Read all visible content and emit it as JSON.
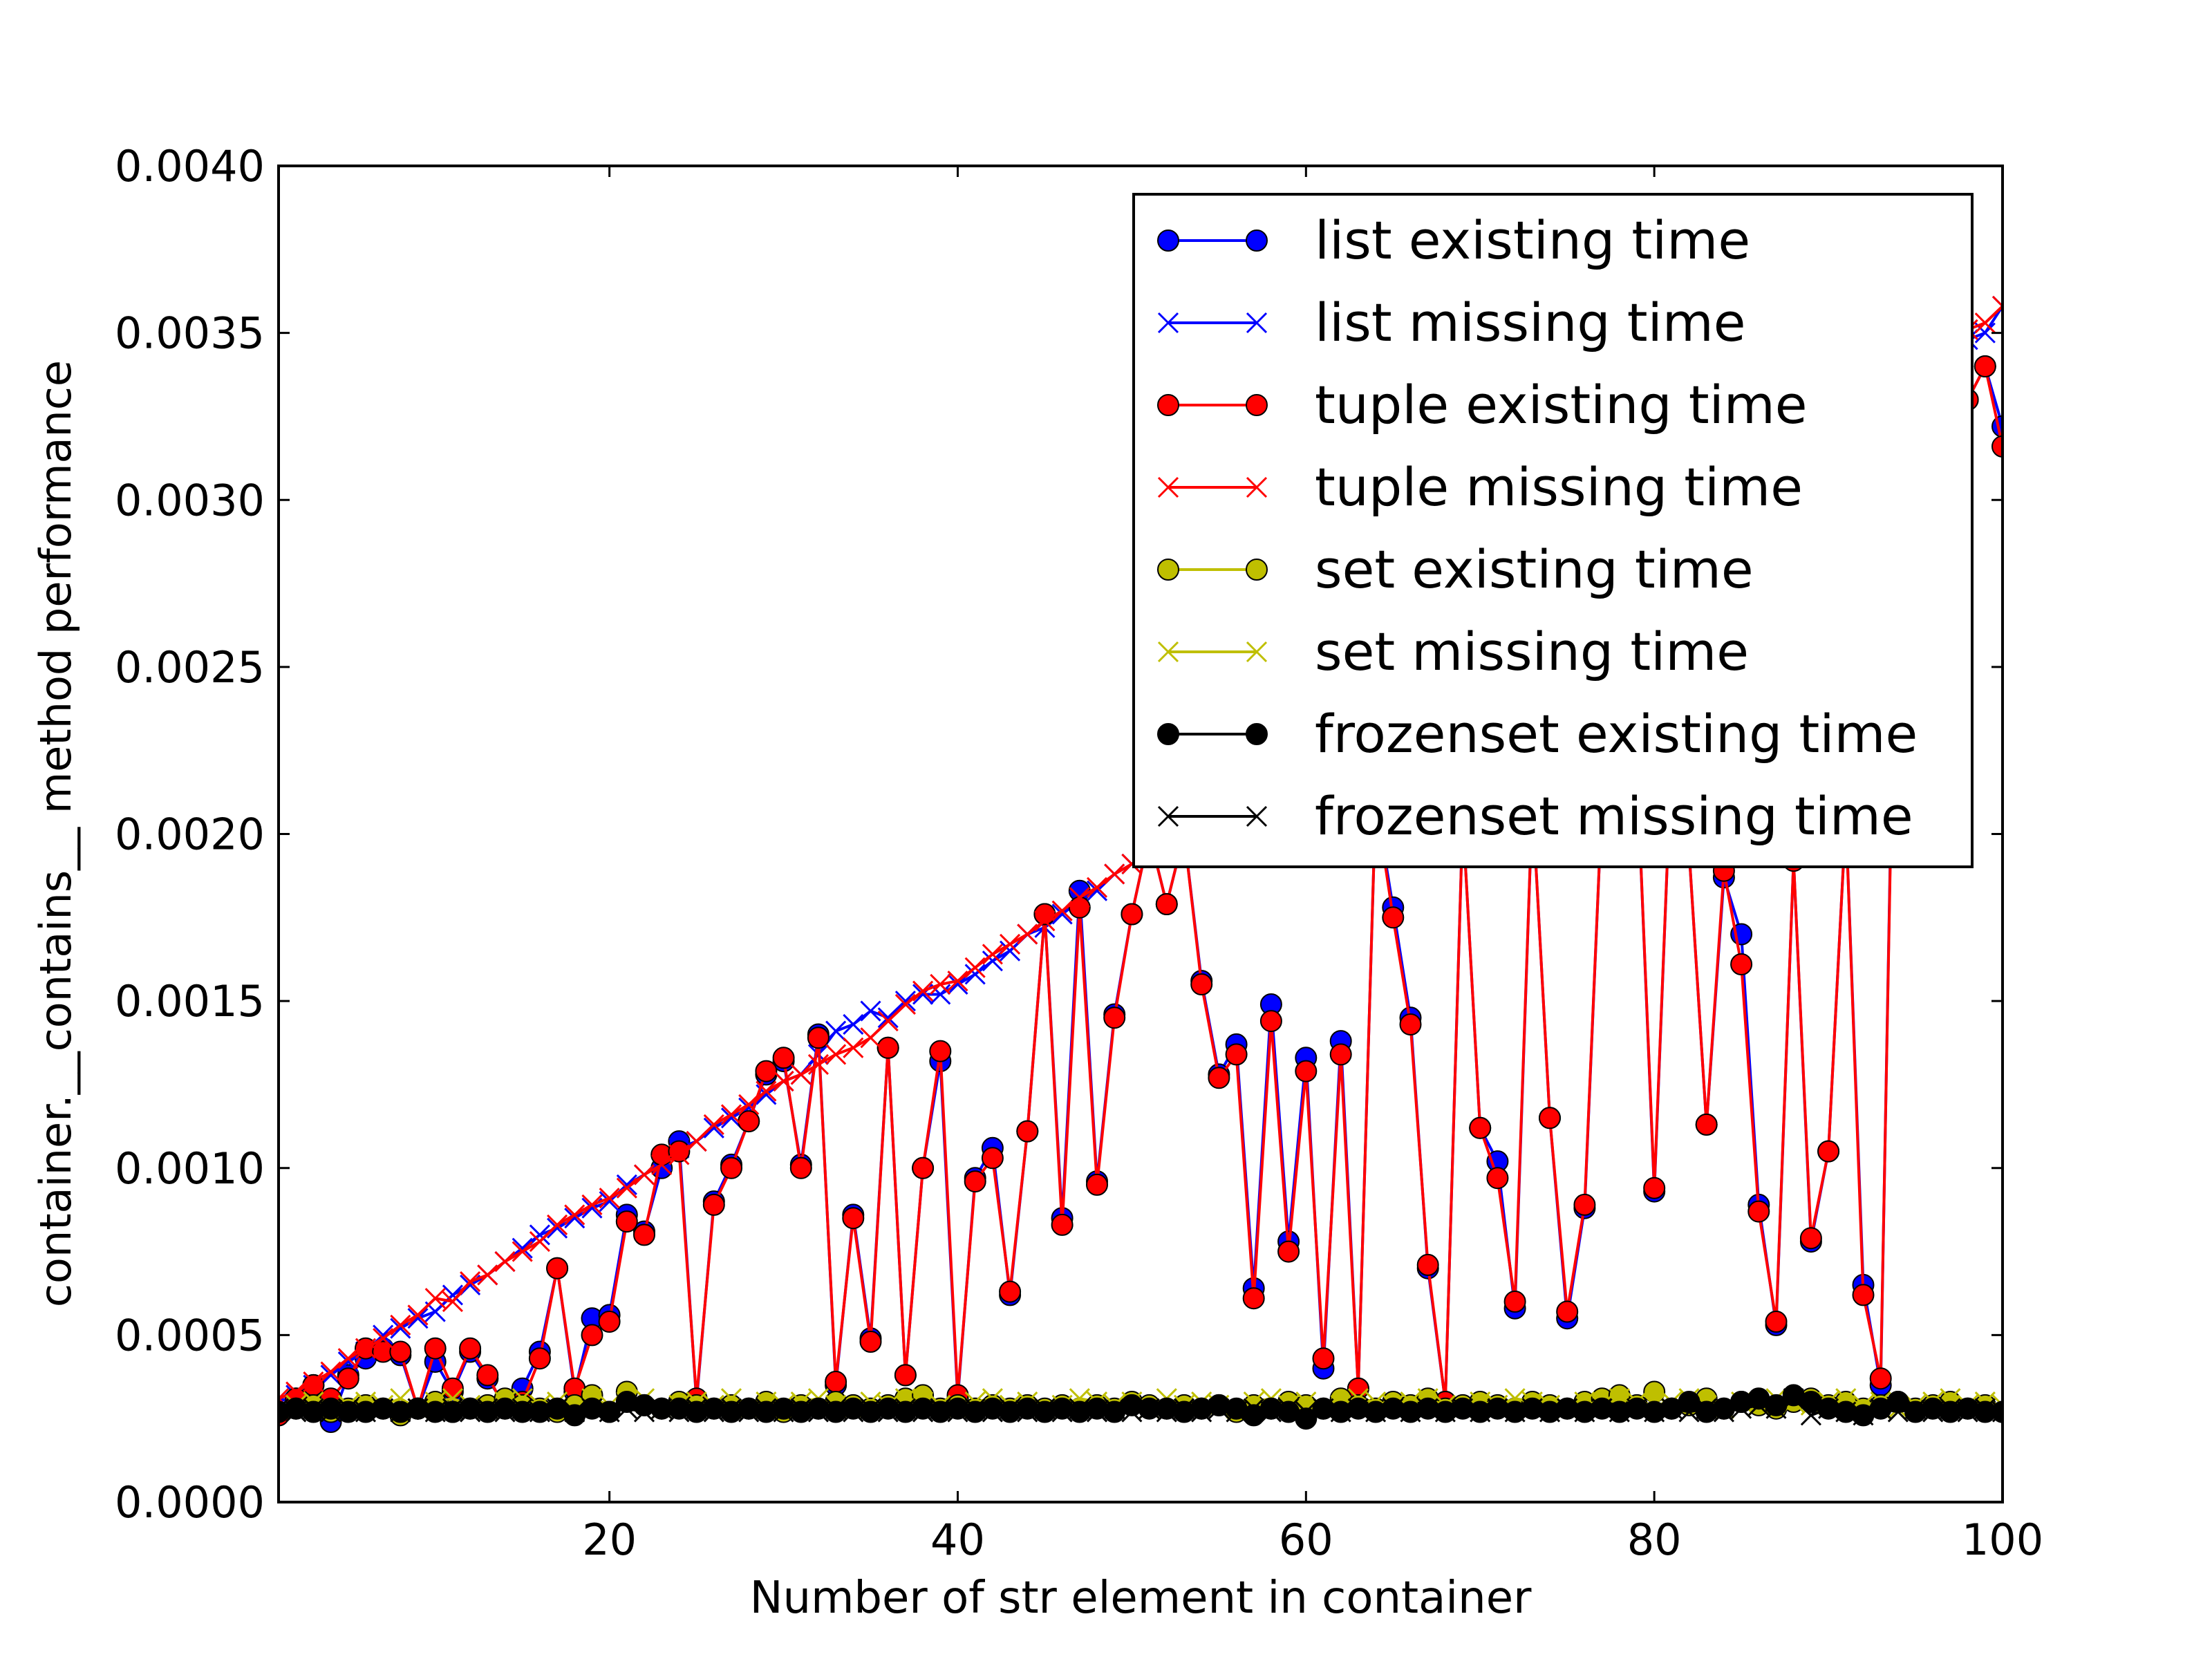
{
  "chart_data": {
    "type": "line",
    "title": "",
    "xlabel": "Number of str element in container",
    "ylabel": "container.__contains__ method performance",
    "xlim": [
      1,
      100
    ],
    "ylim": [
      0,
      0.004
    ],
    "x_ticks": [
      20,
      40,
      60,
      80,
      100
    ],
    "x_tick_labels": [
      "20",
      "40",
      "60",
      "80",
      "100"
    ],
    "y_ticks": [
      0,
      0.0005,
      0.001,
      0.0015,
      0.002,
      0.0025,
      0.003,
      0.0035,
      0.004
    ],
    "y_tick_labels": [
      "0.0000",
      "0.0005",
      "0.0010",
      "0.0015",
      "0.0020",
      "0.0025",
      "0.0030",
      "0.0035",
      "0.0040"
    ],
    "grid": false,
    "legend_position": "top-right",
    "x": [
      1,
      2,
      3,
      4,
      5,
      6,
      7,
      8,
      9,
      10,
      11,
      12,
      13,
      14,
      15,
      16,
      17,
      18,
      19,
      20,
      21,
      22,
      23,
      24,
      25,
      26,
      27,
      28,
      29,
      30,
      31,
      32,
      33,
      34,
      35,
      36,
      37,
      38,
      39,
      40,
      41,
      42,
      43,
      44,
      45,
      46,
      47,
      48,
      49,
      50,
      51,
      52,
      53,
      54,
      55,
      56,
      57,
      58,
      59,
      60,
      61,
      62,
      63,
      64,
      65,
      66,
      67,
      68,
      69,
      70,
      71,
      72,
      73,
      74,
      75,
      76,
      77,
      78,
      79,
      80,
      81,
      82,
      83,
      84,
      85,
      86,
      87,
      88,
      89,
      90,
      91,
      92,
      93,
      94,
      95,
      96,
      97,
      98,
      99,
      100
    ],
    "series": [
      {
        "name": "list existing time",
        "color": "#0000ff",
        "marker": "circle",
        "values": [
          0.00026,
          0.00031,
          0.00035,
          0.00024,
          0.00038,
          0.00043,
          0.00046,
          0.00044,
          0.00028,
          0.00042,
          0.00033,
          0.00045,
          0.00037,
          0.00029,
          0.00034,
          0.00045,
          0.0007,
          0.00033,
          0.00055,
          0.00056,
          0.00086,
          0.00081,
          0.001,
          0.00108,
          0.0003,
          0.0009,
          0.00101,
          0.00114,
          0.00128,
          0.00132,
          0.00101,
          0.0014,
          0.00035,
          0.00086,
          0.00049,
          0.00136,
          0.00038,
          0.001,
          0.00132,
          0.00031,
          0.00097,
          0.00106,
          0.00062,
          0.00111,
          0.00176,
          0.00085,
          0.00183,
          0.00096,
          0.00146,
          0.00176,
          0.002,
          0.00179,
          0.002,
          0.00156,
          0.00128,
          0.00137,
          0.00064,
          0.00149,
          0.00078,
          0.00133,
          0.0004,
          0.00138,
          0.00034,
          0.0021,
          0.00178,
          0.00145,
          0.0007,
          0.0003,
          0.00205,
          0.00112,
          0.00102,
          0.00058,
          0.0021,
          0.00115,
          0.00055,
          0.00088,
          0.0021,
          0.00215,
          0.0022,
          0.00093,
          0.00225,
          0.00195,
          0.00113,
          0.00187,
          0.0017,
          0.00089,
          0.00053,
          0.00192,
          0.00078,
          0.00105,
          0.00205,
          0.00065,
          0.00035,
          0.00322,
          0.0035,
          0.00345,
          0.00355,
          0.0033,
          0.0034,
          0.00322
        ]
      },
      {
        "name": "list missing time",
        "color": "#0000ff",
        "marker": "x",
        "values": [
          0.0003,
          0.00032,
          0.00035,
          0.00038,
          0.00042,
          0.00045,
          0.0005,
          0.00052,
          0.00055,
          0.00057,
          0.00062,
          0.00065,
          0.00068,
          0.00072,
          0.00076,
          0.0008,
          0.00082,
          0.00085,
          0.00088,
          0.0009,
          0.00095,
          0.00098,
          0.00102,
          0.00106,
          0.00108,
          0.00112,
          0.00115,
          0.00118,
          0.00122,
          0.00126,
          0.00128,
          0.00134,
          0.00141,
          0.00143,
          0.00147,
          0.00145,
          0.0015,
          0.00152,
          0.00152,
          0.00155,
          0.00158,
          0.00162,
          0.00165,
          0.0017,
          0.00172,
          0.00176,
          0.0018,
          0.00183,
          0.00188,
          0.00191,
          0.00195,
          0.00198,
          0.00202,
          0.00205,
          0.00208,
          0.00212,
          0.00215,
          0.00218,
          0.00222,
          0.00225,
          0.00228,
          0.00232,
          0.00235,
          0.00238,
          0.00242,
          0.00245,
          0.00248,
          0.00252,
          0.00255,
          0.00258,
          0.00262,
          0.00265,
          0.00268,
          0.00272,
          0.00275,
          0.00278,
          0.00282,
          0.00285,
          0.00288,
          0.00292,
          0.00295,
          0.00298,
          0.00302,
          0.00305,
          0.00308,
          0.00312,
          0.00315,
          0.00318,
          0.00322,
          0.00325,
          0.00328,
          0.00332,
          0.00335,
          0.00338,
          0.0034,
          0.00343,
          0.00346,
          0.00348,
          0.0035,
          0.00358
        ]
      },
      {
        "name": "tuple existing time",
        "color": "#ff0000",
        "marker": "circle",
        "values": [
          0.00026,
          0.00031,
          0.00035,
          0.00031,
          0.00037,
          0.00046,
          0.00045,
          0.00045,
          0.00028,
          0.00046,
          0.00034,
          0.00046,
          0.00038,
          0.00028,
          0.0003,
          0.00043,
          0.0007,
          0.00034,
          0.0005,
          0.00054,
          0.00084,
          0.0008,
          0.00104,
          0.00105,
          0.00031,
          0.00089,
          0.001,
          0.00114,
          0.00129,
          0.00133,
          0.001,
          0.00139,
          0.00036,
          0.00085,
          0.00048,
          0.00136,
          0.00038,
          0.001,
          0.00135,
          0.00032,
          0.00096,
          0.00103,
          0.00063,
          0.00111,
          0.00176,
          0.00083,
          0.00178,
          0.00095,
          0.00145,
          0.00176,
          0.002,
          0.00179,
          0.002,
          0.00155,
          0.00127,
          0.00134,
          0.00061,
          0.00144,
          0.00075,
          0.00129,
          0.00043,
          0.00134,
          0.00034,
          0.0021,
          0.00175,
          0.00143,
          0.00071,
          0.0003,
          0.00205,
          0.00112,
          0.00097,
          0.0006,
          0.0021,
          0.00115,
          0.00057,
          0.00089,
          0.0021,
          0.00215,
          0.0022,
          0.00094,
          0.00225,
          0.00195,
          0.00113,
          0.00189,
          0.00161,
          0.00087,
          0.00054,
          0.00192,
          0.00079,
          0.00105,
          0.00205,
          0.00062,
          0.00037,
          0.00316,
          0.0035,
          0.00345,
          0.00355,
          0.0033,
          0.0034,
          0.00316
        ]
      },
      {
        "name": "tuple missing time",
        "color": "#ff0000",
        "marker": "x",
        "values": [
          0.00031,
          0.00033,
          0.00036,
          0.00039,
          0.00043,
          0.00046,
          0.00049,
          0.00053,
          0.00056,
          0.00061,
          0.0006,
          0.00066,
          0.00068,
          0.00072,
          0.00075,
          0.00078,
          0.00083,
          0.00086,
          0.00089,
          0.00091,
          0.00094,
          0.00098,
          0.00101,
          0.00104,
          0.00108,
          0.00113,
          0.00116,
          0.00119,
          0.00123,
          0.00126,
          0.00128,
          0.00131,
          0.00134,
          0.00136,
          0.00139,
          0.00144,
          0.00149,
          0.00153,
          0.00155,
          0.00156,
          0.0016,
          0.00164,
          0.00167,
          0.0017,
          0.00174,
          0.00177,
          0.00181,
          0.00184,
          0.00188,
          0.00191,
          0.00195,
          0.00198,
          0.00202,
          0.00205,
          0.00209,
          0.00212,
          0.00216,
          0.00219,
          0.00223,
          0.00226,
          0.00229,
          0.00233,
          0.00236,
          0.0024,
          0.00243,
          0.00246,
          0.0025,
          0.00253,
          0.00256,
          0.0026,
          0.00263,
          0.00266,
          0.0027,
          0.00273,
          0.00276,
          0.0028,
          0.00283,
          0.00286,
          0.0029,
          0.00293,
          0.00296,
          0.003,
          0.00303,
          0.00306,
          0.0031,
          0.00313,
          0.00316,
          0.0032,
          0.00323,
          0.00326,
          0.0033,
          0.00333,
          0.00336,
          0.0034,
          0.00343,
          0.00346,
          0.00348,
          0.00351,
          0.00353,
          0.00358
        ]
      },
      {
        "name": "set existing time",
        "color": "#bfbf00",
        "marker": "circle",
        "values": [
          0.00027,
          0.00028,
          0.00029,
          0.00027,
          0.00028,
          0.00029,
          0.00028,
          0.00026,
          0.00028,
          0.0003,
          0.00027,
          0.00028,
          0.00029,
          0.00031,
          0.00029,
          0.00028,
          0.00027,
          0.00029,
          0.00032,
          0.00027,
          0.00033,
          0.00029,
          0.00028,
          0.0003,
          0.00029,
          0.00028,
          0.00029,
          0.00028,
          0.0003,
          0.00027,
          0.00029,
          0.00028,
          0.0003,
          0.00029,
          0.00028,
          0.00029,
          0.00031,
          0.00032,
          0.00028,
          0.00029,
          0.00028,
          0.00029,
          0.00028,
          0.00029,
          0.00028,
          0.00029,
          0.00028,
          0.00029,
          0.00028,
          0.0003,
          0.00029,
          0.00028,
          0.00029,
          0.00028,
          0.00029,
          0.00027,
          0.00029,
          0.00028,
          0.0003,
          0.00029,
          0.00028,
          0.00031,
          0.00029,
          0.00028,
          0.0003,
          0.00029,
          0.00031,
          0.00028,
          0.00029,
          0.0003,
          0.00029,
          0.00028,
          0.0003,
          0.00029,
          0.00028,
          0.0003,
          0.00031,
          0.00032,
          0.00029,
          0.00033,
          0.00028,
          0.00029,
          0.00031,
          0.00028,
          0.0003,
          0.00029,
          0.00028,
          0.0003,
          0.00031,
          0.00029,
          0.0003,
          0.00028,
          0.00029,
          0.0003,
          0.00028,
          0.00029,
          0.0003,
          0.00028,
          0.00029,
          0.00027
        ]
      },
      {
        "name": "set missing time",
        "color": "#bfbf00",
        "marker": "x",
        "values": [
          0.00028,
          0.00029,
          0.0003,
          0.00028,
          0.00029,
          0.0003,
          0.00029,
          0.00031,
          0.00028,
          0.0003,
          0.00031,
          0.00029,
          0.00028,
          0.0003,
          0.00031,
          0.00029,
          0.0003,
          0.00028,
          0.00031,
          0.00029,
          0.0003,
          0.00031,
          0.00028,
          0.00029,
          0.0003,
          0.00029,
          0.00031,
          0.00028,
          0.0003,
          0.00029,
          0.0003,
          0.00031,
          0.00029,
          0.00028,
          0.0003,
          0.00029,
          0.00031,
          0.0003,
          0.00029,
          0.00028,
          0.0003,
          0.00031,
          0.00029,
          0.0003,
          0.00028,
          0.00029,
          0.00031,
          0.0003,
          0.00029,
          0.0003,
          0.00028,
          0.00031,
          0.00029,
          0.0003,
          0.00029,
          0.00028,
          0.0003,
          0.00031,
          0.00029,
          0.0003,
          0.00028,
          0.00029,
          0.00031,
          0.0003,
          0.00029,
          0.0003,
          0.00031,
          0.00029,
          0.00028,
          0.0003,
          0.00029,
          0.00031,
          0.0003,
          0.00029,
          0.00028,
          0.0003,
          0.00029,
          0.00031,
          0.0003,
          0.00029,
          0.0003,
          0.00031,
          0.00029,
          0.00028,
          0.0003,
          0.00029,
          0.00031,
          0.0003,
          0.00029,
          0.0003,
          0.00031,
          0.00029,
          0.0003,
          0.00028,
          0.00029,
          0.0003,
          0.00031,
          0.00029,
          0.0003,
          0.00029
        ]
      },
      {
        "name": "frozenset existing time",
        "color": "#000000",
        "marker": "circle",
        "values": [
          0.00027,
          0.00028,
          0.00027,
          0.00028,
          0.00027,
          0.00027,
          0.00028,
          0.00027,
          0.00028,
          0.00027,
          0.00027,
          0.00028,
          0.00027,
          0.00028,
          0.00027,
          0.00027,
          0.00028,
          0.00026,
          0.00028,
          0.00027,
          0.0003,
          0.00029,
          0.00028,
          0.00028,
          0.00027,
          0.00028,
          0.00027,
          0.00028,
          0.00027,
          0.00028,
          0.00027,
          0.00028,
          0.00027,
          0.00028,
          0.00027,
          0.00028,
          0.00027,
          0.00028,
          0.00027,
          0.00028,
          0.00027,
          0.00028,
          0.00027,
          0.00028,
          0.00027,
          0.00028,
          0.00027,
          0.00028,
          0.00027,
          0.00029,
          0.00028,
          0.00028,
          0.00027,
          0.00028,
          0.00029,
          0.00028,
          0.00026,
          0.00028,
          0.00027,
          0.00025,
          0.00028,
          0.00027,
          0.00028,
          0.00027,
          0.00028,
          0.00027,
          0.00028,
          0.00027,
          0.00028,
          0.00027,
          0.00028,
          0.00027,
          0.00028,
          0.00027,
          0.00028,
          0.00027,
          0.00028,
          0.00027,
          0.00028,
          0.00027,
          0.00028,
          0.0003,
          0.00027,
          0.00028,
          0.0003,
          0.00031,
          0.00029,
          0.00032,
          0.0003,
          0.00028,
          0.00027,
          0.00026,
          0.00028,
          0.0003,
          0.00027,
          0.00028,
          0.00027,
          0.00028,
          0.00027,
          0.00027
        ]
      },
      {
        "name": "frozenset missing time",
        "color": "#000000",
        "marker": "x",
        "values": [
          0.00028,
          0.00027,
          0.00028,
          0.00027,
          0.00028,
          0.00027,
          0.00028,
          0.00027,
          0.00028,
          0.00027,
          0.00028,
          0.00027,
          0.00028,
          0.00027,
          0.00028,
          0.00027,
          0.00028,
          0.00027,
          0.00028,
          0.00027,
          0.00028,
          0.00027,
          0.00028,
          0.00027,
          0.00028,
          0.00027,
          0.00028,
          0.00027,
          0.00028,
          0.00027,
          0.00028,
          0.00027,
          0.00028,
          0.00027,
          0.00028,
          0.00027,
          0.00028,
          0.00027,
          0.00028,
          0.00027,
          0.00028,
          0.00027,
          0.00028,
          0.00027,
          0.00028,
          0.00027,
          0.00028,
          0.00027,
          0.00028,
          0.00027,
          0.00028,
          0.00027,
          0.00028,
          0.00027,
          0.00028,
          0.00027,
          0.00028,
          0.00027,
          0.00028,
          0.00027,
          0.00028,
          0.00027,
          0.00028,
          0.00027,
          0.00028,
          0.00027,
          0.00028,
          0.00027,
          0.00028,
          0.00027,
          0.00028,
          0.00027,
          0.00028,
          0.00027,
          0.00028,
          0.00027,
          0.00028,
          0.00027,
          0.00028,
          0.00027,
          0.00028,
          0.00027,
          0.00028,
          0.00027,
          0.00028,
          0.00029,
          0.00028,
          0.00031,
          0.00026,
          0.00028,
          0.00027,
          0.00026,
          0.00028,
          0.00027,
          0.00028,
          0.00027,
          0.00028,
          0.00027,
          0.00028,
          0.00027
        ]
      }
    ]
  }
}
